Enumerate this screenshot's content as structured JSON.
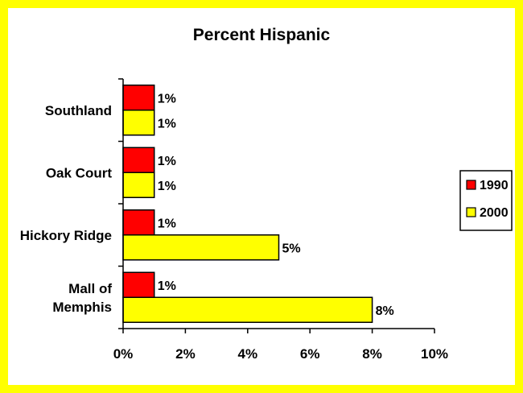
{
  "chart_data": {
    "type": "bar",
    "orientation": "horizontal",
    "title": "Percent Hispanic",
    "xlabel": "",
    "ylabel": "",
    "categories": [
      "Southland",
      "Oak Court",
      "Hickory Ridge",
      "Mall of Memphis"
    ],
    "category_lines": [
      [
        "Southland"
      ],
      [
        "Oak Court"
      ],
      [
        "Hickory Ridge"
      ],
      [
        "Mall of",
        "Memphis"
      ]
    ],
    "series": [
      {
        "name": "1990",
        "values": [
          1,
          1,
          1,
          1
        ],
        "labels": [
          "1%",
          "1%",
          "1%",
          "1%"
        ],
        "color": "#ff0000"
      },
      {
        "name": "2000",
        "values": [
          1,
          1,
          5,
          8
        ],
        "labels": [
          "1%",
          "1%",
          "5%",
          "8%"
        ],
        "color": "#ffff00"
      }
    ],
    "xlim": [
      0,
      10
    ],
    "xticks": [
      0,
      2,
      4,
      6,
      8,
      10
    ],
    "xtick_labels": [
      "0%",
      "2%",
      "4%",
      "6%",
      "8%",
      "10%"
    ],
    "grid": false,
    "legend_position": "right",
    "border_color": "#ffff00"
  }
}
